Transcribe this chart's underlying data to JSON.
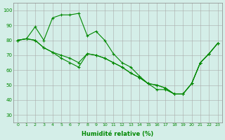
{
  "xlabel": "Humidité relative (%)",
  "ylabel": "",
  "xlim": [
    0,
    23
  ],
  "ylim": [
    25,
    105
  ],
  "yticks": [
    30,
    40,
    50,
    60,
    70,
    80,
    90,
    100
  ],
  "xticks": [
    0,
    1,
    2,
    3,
    4,
    5,
    6,
    7,
    8,
    9,
    10,
    11,
    12,
    13,
    14,
    15,
    16,
    17,
    18,
    19,
    20,
    21,
    22,
    23
  ],
  "background_color": "#d4eee8",
  "grid_color": "#aaaaaa",
  "line_color": "#008800",
  "line1": [
    80,
    81,
    89,
    80,
    95,
    97,
    97,
    98,
    83,
    86,
    80,
    71,
    65,
    62,
    56,
    51,
    47,
    47,
    44,
    44,
    51,
    65,
    71,
    78
  ],
  "line2": [
    80,
    81,
    80,
    75,
    72,
    70,
    68,
    65,
    71,
    70,
    68,
    65,
    62,
    58,
    55,
    51,
    50,
    48,
    44,
    44,
    51,
    65,
    71,
    78
  ],
  "line3": [
    80,
    81,
    80,
    75,
    72,
    68,
    65,
    62,
    71,
    70,
    68,
    65,
    62,
    58,
    55,
    51,
    50,
    48,
    44,
    44,
    51,
    65,
    71,
    78
  ]
}
